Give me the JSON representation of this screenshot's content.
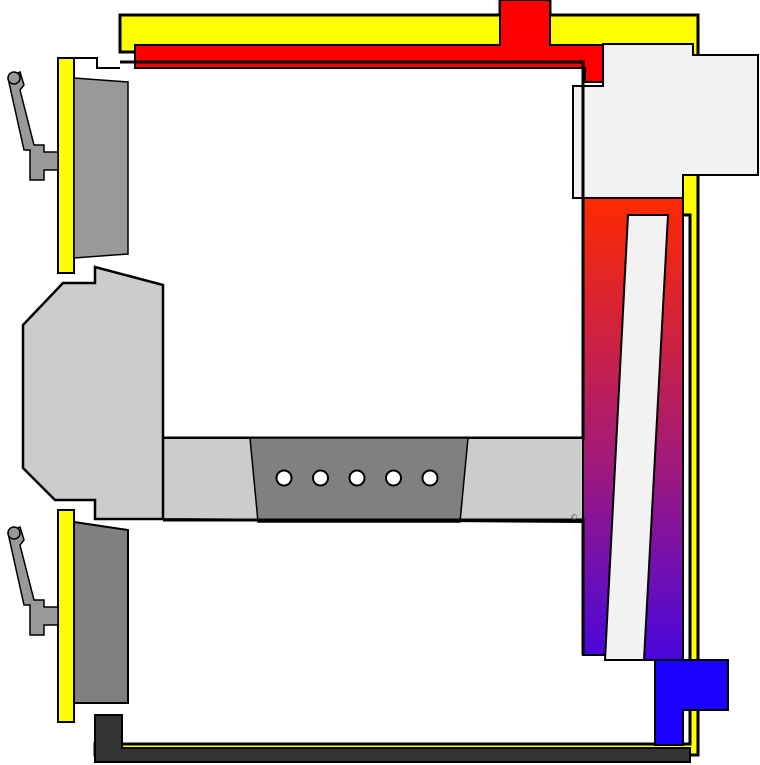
{
  "diagram": {
    "copyright_mark": "©",
    "nozzle_holes": 5,
    "colors": {
      "outer_jacket": "#ffff00",
      "hot_water": "#ff0000",
      "cold_water": "#1a00ff",
      "water_gradient": [
        "#ff2a00",
        "#a11a7a",
        "#2a00ff"
      ],
      "refractory": "#cccccc",
      "door_insulation_upper": "#999999",
      "door_insulation_lower": "#808080",
      "nozzle_block": "#808080",
      "chimney": "#f2f2f2",
      "base": "#333333",
      "outline": "#000000"
    }
  }
}
